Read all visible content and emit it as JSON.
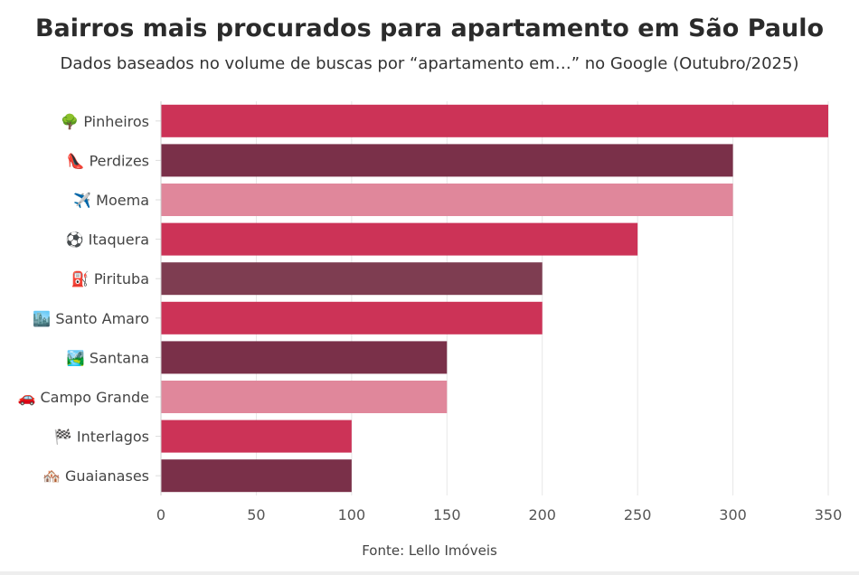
{
  "chart_data": {
    "type": "bar",
    "orientation": "horizontal",
    "title": "Bairros mais procurados para apartamento em São Paulo",
    "subtitle": "Dados baseados no volume de buscas por “apartamento em…” no Google (Outubro/2025)",
    "source": "Fonte: Lello Imóveis",
    "categories": [
      "🌳 Pinheiros",
      "👠 Perdizes",
      "✈️ Moema",
      "⚽ Itaquera",
      "⛽ Pirituba",
      "🏙️ Santo Amaro",
      "🏞️ Santana",
      "🚗 Campo Grande",
      "🏁 Interlagos",
      "🏘️ Guaianases"
    ],
    "values": [
      350,
      300,
      300,
      250,
      200,
      200,
      150,
      150,
      100,
      100
    ],
    "bar_colors": [
      "#CC3357",
      "#7A3049",
      "#E0879B",
      "#CC3357",
      "#7E3D51",
      "#CC3357",
      "#7A3049",
      "#E0879B",
      "#CC3357",
      "#7A3049"
    ],
    "xlim": [
      0,
      350
    ],
    "xticks": [
      0,
      50,
      100,
      150,
      200,
      250,
      300,
      350
    ],
    "grid": true,
    "legend": "none"
  }
}
